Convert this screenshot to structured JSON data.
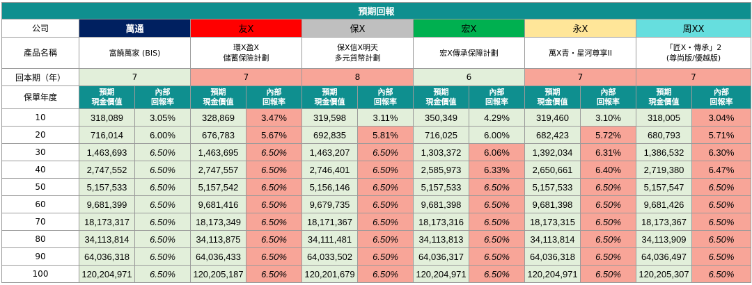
{
  "title": "預期回報",
  "labels": {
    "company": "公司",
    "product": "產品名稱",
    "payback": "回本期（年）",
    "policy_year": "保單年度",
    "cash_value": "預期\n現金價值",
    "irr": "內部\n回報率"
  },
  "companies": [
    {
      "name": "萬通",
      "color": "#002060",
      "text_color": "#ffffff",
      "product": "富饒萬家 (BIS)",
      "payback": "7"
    },
    {
      "name": "友X",
      "color": "#ff0000",
      "text_color": "#000000",
      "product": "環X盈X\n儲蓄保險計劃",
      "payback": "7"
    },
    {
      "name": "保X",
      "color": "#bfbfbf",
      "text_color": "#000000",
      "product": "保X信X明天\n多元貨幣計劃",
      "payback": "8"
    },
    {
      "name": "宏X",
      "color": "#00b050",
      "text_color": "#000000",
      "product": "宏X傳承保障計劃",
      "payback": "6"
    },
    {
      "name": "永X",
      "color": "#ffe699",
      "text_color": "#000000",
      "product": "萬X青・星河尊享II",
      "payback": "7"
    },
    {
      "name": "周XX",
      "color": "#66dede",
      "text_color": "#000000",
      "product": "「匠X・傳承」2\n(尊尚版/優越版)",
      "payback": "7"
    }
  ],
  "rows": [
    {
      "year": "10",
      "values": [
        "318,089",
        "3.05%",
        "328,869",
        "3.47%",
        "319,598",
        "3.11%",
        "350,349",
        "4.29%",
        "319,460",
        "3.10%",
        "318,005",
        "3.04%"
      ]
    },
    {
      "year": "20",
      "values": [
        "716,014",
        "6.00%",
        "676,783",
        "5.67%",
        "692,835",
        "5.81%",
        "716,025",
        "6.00%",
        "682,423",
        "5.72%",
        "680,793",
        "5.71%"
      ]
    },
    {
      "year": "30",
      "values": [
        "1,463,693",
        "6.50%",
        "1,463,695",
        "6.50%",
        "1,463,207",
        "6.50%",
        "1,303,372",
        "6.06%",
        "1,392,034",
        "6.31%",
        "1,386,532",
        "6.30%"
      ]
    },
    {
      "year": "40",
      "values": [
        "2,747,552",
        "6.50%",
        "2,747,557",
        "6.50%",
        "2,746,401",
        "6.50%",
        "2,585,973",
        "6.33%",
        "2,650,661",
        "6.40%",
        "2,719,380",
        "6.47%"
      ]
    },
    {
      "year": "50",
      "values": [
        "5,157,533",
        "6.50%",
        "5,157,542",
        "6.50%",
        "5,156,146",
        "6.50%",
        "5,157,533",
        "6.50%",
        "5,157,533",
        "6.50%",
        "5,157,547",
        "6.50%"
      ]
    },
    {
      "year": "60",
      "values": [
        "9,681,399",
        "6.50%",
        "9,681,416",
        "6.50%",
        "9,679,735",
        "6.50%",
        "9,681,398",
        "6.50%",
        "9,681,398",
        "6.50%",
        "9,681,426",
        "6.50%"
      ]
    },
    {
      "year": "70",
      "values": [
        "18,173,317",
        "6.50%",
        "18,173,349",
        "6.50%",
        "18,171,367",
        "6.50%",
        "18,173,316",
        "6.50%",
        "18,173,315",
        "6.50%",
        "18,173,367",
        "6.50%"
      ]
    },
    {
      "year": "80",
      "values": [
        "34,113,814",
        "6.50%",
        "34,113,875",
        "6.50%",
        "34,111,481",
        "6.50%",
        "34,113,813",
        "6.50%",
        "34,113,814",
        "6.50%",
        "34,113,909",
        "6.50%"
      ]
    },
    {
      "year": "90",
      "values": [
        "64,036,318",
        "6.50%",
        "64,036,433",
        "6.50%",
        "64,033,502",
        "6.50%",
        "64,036,317",
        "6.50%",
        "64,036,318",
        "6.50%",
        "64,036,497",
        "6.50%"
      ]
    },
    {
      "year": "100",
      "values": [
        "120,204,971",
        "6.50%",
        "120,205,187",
        "6.50%",
        "120,201,679",
        "6.50%",
        "120,204,971",
        "6.50%",
        "120,204,971",
        "6.50%",
        "120,205,307",
        "6.50%"
      ]
    }
  ],
  "cell_colors": [
    [
      "g",
      "g",
      "g",
      "r",
      "g",
      "g",
      "g",
      "g",
      "g",
      "g",
      "g",
      "r"
    ],
    [
      "g",
      "g",
      "g",
      "r",
      "g",
      "r",
      "g",
      "g",
      "g",
      "r",
      "g",
      "r"
    ],
    [
      "g",
      "g",
      "g",
      "r",
      "g",
      "r",
      "g",
      "r",
      "g",
      "r",
      "g",
      "r"
    ],
    [
      "g",
      "g",
      "g",
      "r",
      "g",
      "r",
      "g",
      "r",
      "g",
      "r",
      "g",
      "r"
    ],
    [
      "g",
      "g",
      "g",
      "r",
      "g",
      "r",
      "g",
      "r",
      "g",
      "r",
      "g",
      "r"
    ],
    [
      "g",
      "g",
      "g",
      "r",
      "g",
      "r",
      "g",
      "r",
      "g",
      "r",
      "g",
      "r"
    ],
    [
      "g",
      "g",
      "g",
      "r",
      "g",
      "r",
      "g",
      "r",
      "g",
      "r",
      "g",
      "r"
    ],
    [
      "g",
      "g",
      "g",
      "r",
      "g",
      "r",
      "g",
      "r",
      "g",
      "r",
      "g",
      "r"
    ],
    [
      "g",
      "g",
      "g",
      "r",
      "g",
      "r",
      "g",
      "r",
      "g",
      "r",
      "g",
      "r"
    ],
    [
      "g",
      "g",
      "g",
      "r",
      "g",
      "r",
      "g",
      "r",
      "g",
      "r",
      "g",
      "r"
    ]
  ],
  "italic_cells": [
    [
      false,
      false,
      false,
      false,
      false,
      false,
      false,
      false,
      false,
      false,
      false,
      false
    ],
    [
      false,
      false,
      false,
      false,
      false,
      false,
      false,
      false,
      false,
      false,
      false,
      false
    ],
    [
      false,
      true,
      false,
      true,
      false,
      true,
      false,
      false,
      false,
      false,
      false,
      false
    ],
    [
      false,
      true,
      false,
      true,
      false,
      true,
      false,
      false,
      false,
      false,
      false,
      false
    ],
    [
      false,
      true,
      false,
      true,
      false,
      true,
      false,
      true,
      false,
      true,
      false,
      true
    ],
    [
      false,
      true,
      false,
      true,
      false,
      true,
      false,
      true,
      false,
      true,
      false,
      true
    ],
    [
      false,
      true,
      false,
      true,
      false,
      true,
      false,
      true,
      false,
      true,
      false,
      true
    ],
    [
      false,
      true,
      false,
      true,
      false,
      true,
      false,
      true,
      false,
      true,
      false,
      true
    ],
    [
      false,
      true,
      false,
      true,
      false,
      true,
      false,
      true,
      false,
      true,
      false,
      true
    ],
    [
      false,
      true,
      false,
      true,
      false,
      true,
      false,
      true,
      false,
      true,
      false,
      true
    ]
  ],
  "payback_colors": [
    "g",
    "r",
    "r",
    "g",
    "r",
    "r"
  ]
}
